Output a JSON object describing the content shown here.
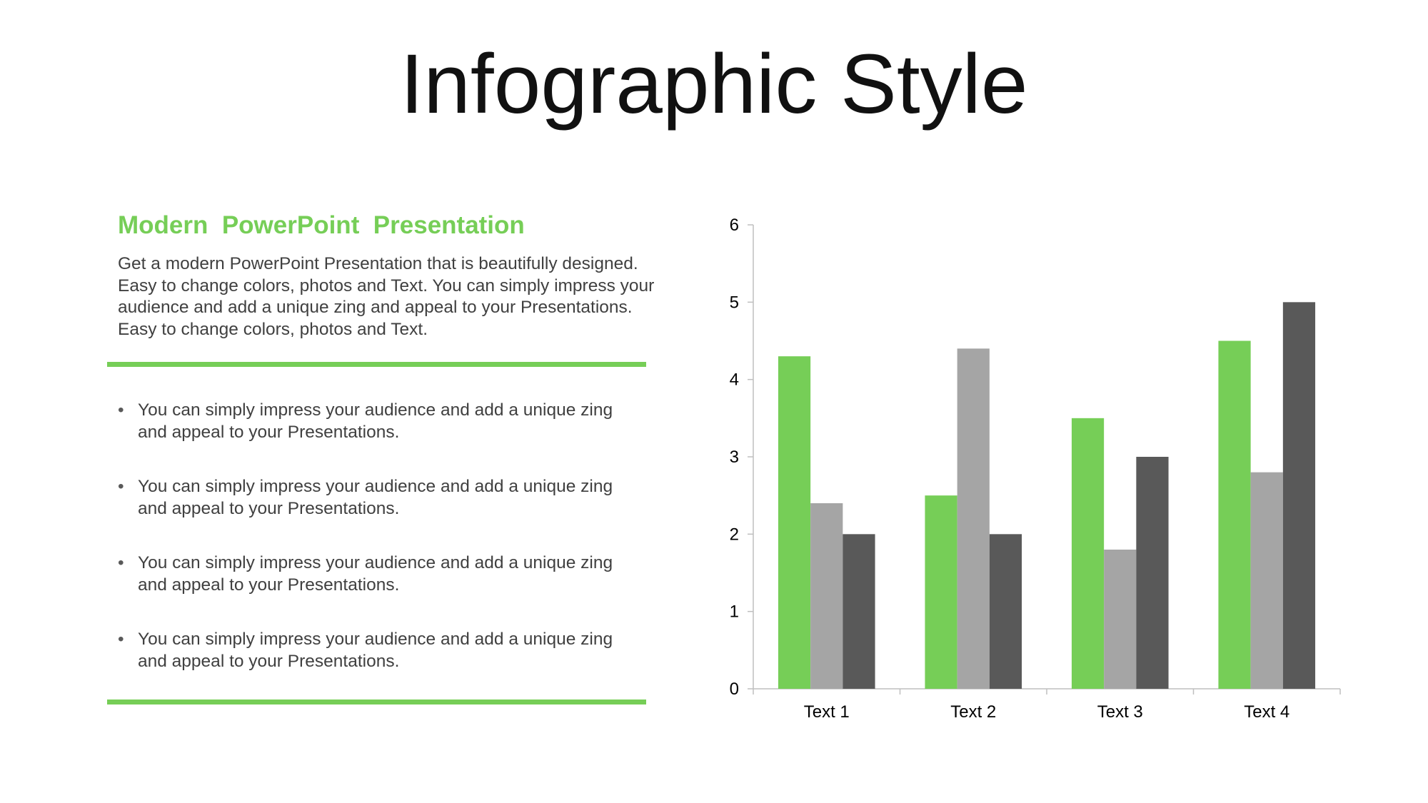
{
  "slide": {
    "title": "Infographic Style",
    "subheading": "Modern  PowerPoint  Presentation",
    "intro": "Get a modern PowerPoint  Presentation that is beautifully designed. Easy to change colors, photos and Text. You can simply impress your audience and add a unique zing and appeal to your Presentations. Easy to change colors, photos and Text.",
    "bullet_symbol": "•",
    "bullets": [
      "You can simply impress your audience and add a unique zing and appeal to your Presentations.",
      "You can simply impress your audience and add a unique zing and appeal to your Presentations.",
      "You can simply impress your audience and add a unique zing and appeal to your Presentations.",
      "You can simply impress your audience and add a unique zing and appeal to your Presentations."
    ],
    "accent_color": "#76CE57"
  },
  "chart_data": {
    "type": "bar",
    "categories": [
      "Text 1",
      "Text 2",
      "Text 3",
      "Text 4"
    ],
    "series": [
      {
        "color": "#76CE57",
        "values": [
          4.3,
          2.5,
          3.5,
          4.5
        ]
      },
      {
        "color": "#A5A5A5",
        "values": [
          2.4,
          4.4,
          1.8,
          2.8
        ]
      },
      {
        "color": "#595959",
        "values": [
          2.0,
          2.0,
          3.0,
          5.0
        ]
      }
    ],
    "ylim": [
      0,
      6
    ],
    "yticks": [
      0,
      1,
      2,
      3,
      4,
      5,
      6
    ],
    "grid": false,
    "legend": "none"
  }
}
